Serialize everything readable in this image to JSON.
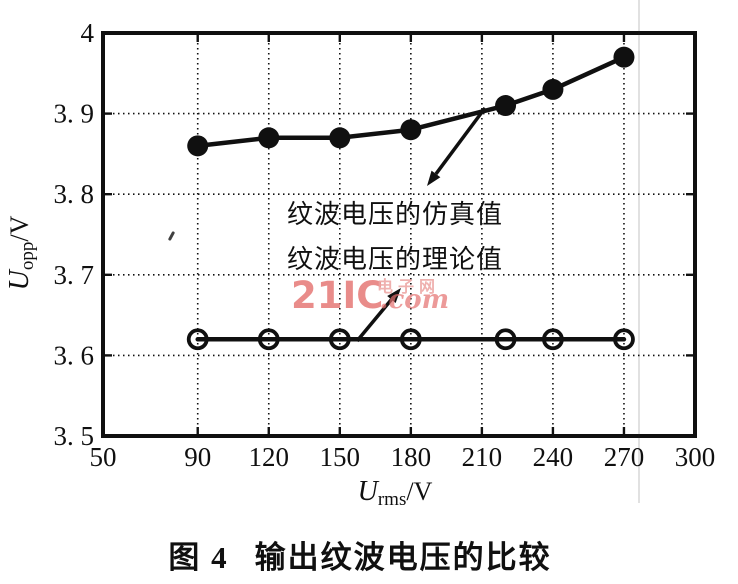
{
  "colors": {
    "background": "#ffffff",
    "ink": "#101010",
    "watermark_pink": "#e4706e",
    "watermark_pink_light": "#eda4a2"
  },
  "annotations": {
    "sim_label": "纹波电压的仿真值",
    "theory_label": "纹波电压的理论值"
  },
  "watermark": {
    "brand": "21IC",
    "suffix": ".com",
    "cn": "电子网"
  },
  "caption": {
    "prefix": "图 4",
    "text": "输出纹波电压的比较"
  },
  "chart_data": {
    "type": "line",
    "title": "",
    "xlabel": "Urms/V",
    "ylabel": "Uopp/V",
    "xlabel_parts": {
      "var": "U",
      "sub": "rms",
      "unit": "/V"
    },
    "ylabel_parts": {
      "var": "U",
      "sub": "opp",
      "unit": "/V"
    },
    "xlim": [
      50,
      300
    ],
    "ylim": [
      3.5,
      4.0
    ],
    "x_ticks": [
      50,
      90,
      120,
      150,
      180,
      210,
      240,
      270,
      300
    ],
    "x_tick_labels": [
      "50",
      "90",
      "120",
      "150",
      "180",
      "210",
      "240",
      "270",
      "300"
    ],
    "y_ticks": [
      3.5,
      3.6,
      3.7,
      3.8,
      3.9,
      4.0
    ],
    "y_tick_labels": [
      "3. 5",
      "3. 6",
      "3. 7",
      "3. 8",
      "3. 9",
      "4"
    ],
    "grid": true,
    "legend_position": "none",
    "series": [
      {
        "name": "纹波电压的仿真值",
        "marker": "filled-circle",
        "x": [
          90,
          120,
          150,
          180,
          220,
          240,
          270
        ],
        "y": [
          3.86,
          3.87,
          3.87,
          3.88,
          3.91,
          3.93,
          3.97
        ]
      },
      {
        "name": "纹波电压的理论值",
        "marker": "open-circle",
        "x": [
          90,
          120,
          150,
          180,
          220,
          240,
          270
        ],
        "y": [
          3.62,
          3.62,
          3.62,
          3.62,
          3.62,
          3.62,
          3.62
        ]
      }
    ]
  }
}
